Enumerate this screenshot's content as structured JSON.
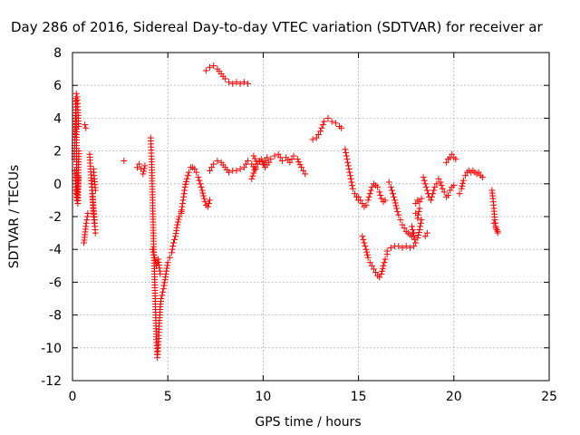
{
  "chart_data": {
    "type": "scatter",
    "title": "Day 286 of 2016, Sidereal Day-to-day VTEC variation (SDTVAR) for receiver ar",
    "xlabel": "GPS time / hours",
    "ylabel": "SDTVAR / TECUs",
    "xlim": [
      0,
      25
    ],
    "ylim": [
      -12,
      8
    ],
    "xticks": [
      0,
      5,
      10,
      15,
      20,
      25
    ],
    "yticks": [
      -12,
      -10,
      -8,
      -6,
      -4,
      -2,
      0,
      2,
      4,
      6,
      8
    ],
    "grid": true,
    "marker": "plus",
    "color": "#ff0000",
    "series": [
      {
        "name": "SDTVAR",
        "segments": [
          {
            "x": [
              0.1,
              0.12,
              0.15,
              0.18,
              0.2,
              0.22,
              0.25,
              0.28,
              0.3,
              0.33
            ],
            "y": [
              1.5,
              2.5,
              3.8,
              5.2,
              4.0,
              1.0,
              -0.5,
              -1.2,
              0.5,
              2.0
            ]
          },
          {
            "x": [
              0.12,
              0.16,
              0.2,
              0.24,
              0.28,
              0.32
            ],
            "y": [
              0.8,
              0.2,
              -0.6,
              -1.0,
              -0.3,
              0.4
            ]
          },
          {
            "x": [
              0.2,
              0.24,
              0.28,
              0.32
            ],
            "y": [
              5.5,
              5.3,
              4.5,
              3.5
            ]
          },
          {
            "x": [
              0.65,
              0.7
            ],
            "y": [
              3.6,
              3.4
            ]
          },
          {
            "x": [
              0.6,
              0.7,
              0.8
            ],
            "y": [
              -3.6,
              -2.6,
              -1.8
            ]
          },
          {
            "x": [
              0.9,
              0.95,
              1.0,
              1.05,
              1.1,
              1.15,
              1.2
            ],
            "y": [
              1.8,
              0.9,
              0.0,
              -0.8,
              -1.5,
              -2.2,
              -3.0
            ]
          },
          {
            "x": [
              1.0,
              1.05,
              1.1,
              1.15
            ],
            "y": [
              0.2,
              -0.6,
              -1.8,
              -2.4
            ]
          },
          {
            "x": [
              1.1,
              1.15,
              1.2
            ],
            "y": [
              0.9,
              0.3,
              -0.4
            ]
          },
          {
            "x": [
              2.7
            ],
            "y": [
              1.4
            ]
          },
          {
            "x": [
              3.4,
              3.5,
              3.6,
              3.7,
              3.8
            ],
            "y": [
              1.0,
              1.2,
              0.9,
              0.6,
              1.1
            ]
          },
          {
            "x": [
              4.1,
              4.15,
              4.2,
              4.25,
              4.3,
              4.35,
              4.4,
              4.45,
              4.5,
              4.55,
              4.6,
              4.65,
              4.7,
              4.8,
              4.9,
              5.0,
              5.1,
              5.2,
              5.3,
              5.4,
              5.5,
              5.6,
              5.7
            ],
            "y": [
              2.8,
              1.5,
              -1.0,
              -3.5,
              -5.5,
              -7.5,
              -9.5,
              -10.6,
              -9.8,
              -8.5,
              -7.5,
              -7.0,
              -6.8,
              -6.2,
              -5.5,
              -4.8,
              -4.5,
              -4.2,
              -3.6,
              -3.2,
              -2.5,
              -2.0,
              -1.7
            ]
          },
          {
            "x": [
              4.2,
              4.3,
              4.4,
              4.5,
              4.6
            ],
            "y": [
              -4.0,
              -4.5,
              -5.0,
              -4.6,
              -5.5
            ]
          },
          {
            "x": [
              5.7,
              5.8,
              5.9,
              6.0,
              6.1,
              6.2,
              6.3,
              6.4,
              6.5,
              6.6,
              6.7,
              6.8,
              6.9,
              7.0,
              7.1,
              7.2
            ],
            "y": [
              -1.8,
              -1.0,
              -0.2,
              0.3,
              0.7,
              1.0,
              1.0,
              0.9,
              0.7,
              0.4,
              0.0,
              -0.4,
              -0.9,
              -1.3,
              -1.4,
              -1.0
            ]
          },
          {
            "x": [
              7.0,
              7.2,
              7.4,
              7.6,
              7.8,
              8.0,
              8.2,
              8.4,
              8.6,
              8.8,
              9.0,
              9.2
            ],
            "y": [
              6.9,
              7.1,
              7.2,
              7.0,
              6.7,
              6.4,
              6.2,
              6.1,
              6.2,
              6.1,
              6.2,
              6.1
            ]
          },
          {
            "x": [
              7.2,
              7.4,
              7.6,
              7.8,
              8.0,
              8.2,
              8.4,
              8.6,
              8.8,
              9.0,
              9.2,
              9.4,
              9.6
            ],
            "y": [
              0.8,
              1.2,
              1.4,
              1.3,
              1.0,
              0.7,
              0.8,
              0.8,
              0.9,
              1.0,
              1.4,
              1.2,
              0.9
            ]
          },
          {
            "x": [
              9.4,
              9.6,
              9.8,
              10.0,
              10.2,
              10.4,
              10.6,
              10.8,
              11.0,
              11.2,
              11.4,
              11.6,
              11.8,
              12.0,
              12.2
            ],
            "y": [
              0.3,
              1.0,
              1.4,
              1.2,
              1.6,
              1.5,
              1.7,
              1.8,
              1.4,
              1.6,
              1.3,
              1.7,
              1.5,
              1.0,
              0.6
            ]
          },
          {
            "x": [
              9.5,
              9.7,
              9.9,
              10.1,
              10.3
            ],
            "y": [
              1.7,
              1.2,
              1.5,
              1.0,
              1.3
            ]
          },
          {
            "x": [
              12.6,
              12.8,
              13.0,
              13.2,
              13.4,
              13.6,
              13.8,
              14.0,
              14.1
            ],
            "y": [
              2.7,
              2.8,
              3.2,
              3.8,
              4.0,
              3.8,
              3.7,
              3.5,
              3.4
            ]
          },
          {
            "x": [
              14.3,
              14.4,
              14.5,
              14.6,
              14.7,
              14.8,
              14.9,
              15.0
            ],
            "y": [
              2.1,
              1.5,
              0.9,
              0.3,
              -0.3,
              -0.6,
              -0.8,
              -1.0
            ]
          },
          {
            "x": [
              15.0,
              15.1,
              15.2,
              15.3,
              15.4,
              15.5,
              15.6,
              15.7,
              15.8,
              15.9,
              16.0,
              16.1,
              16.2,
              16.3,
              16.4
            ],
            "y": [
              -0.8,
              -1.0,
              -1.2,
              -1.4,
              -1.3,
              -1.0,
              -0.6,
              -0.2,
              0.0,
              -0.1,
              -0.2,
              -0.5,
              -0.9,
              -1.1,
              -1.0
            ]
          },
          {
            "x": [
              15.2,
              15.3,
              15.4,
              15.5,
              15.6,
              15.7,
              15.8,
              15.9,
              16.0,
              16.1,
              16.2,
              16.3,
              16.4,
              16.5
            ],
            "y": [
              -3.2,
              -3.6,
              -4.0,
              -4.5,
              -4.8,
              -5.0,
              -5.2,
              -5.4,
              -5.6,
              -5.7,
              -5.5,
              -5.0,
              -4.6,
              -4.3
            ]
          },
          {
            "x": [
              16.5,
              16.7,
              16.9,
              17.1,
              17.3,
              17.5,
              17.7,
              17.9
            ],
            "y": [
              -4.1,
              -3.9,
              -3.8,
              -3.8,
              -3.9,
              -3.8,
              -3.9,
              -3.8
            ]
          },
          {
            "x": [
              16.6,
              16.7,
              16.8,
              16.9,
              17.0,
              17.1,
              17.2,
              17.3,
              17.4,
              17.5,
              17.6,
              17.7,
              17.8,
              17.9
            ],
            "y": [
              0.1,
              -0.2,
              -0.6,
              -1.0,
              -1.5,
              -1.9,
              -2.2,
              -2.5,
              -2.7,
              -2.9,
              -3.0,
              -3.1,
              -3.2,
              -3.0
            ]
          },
          {
            "x": [
              17.8,
              17.9,
              18.0,
              18.1,
              18.2,
              18.3
            ],
            "y": [
              -2.6,
              -3.2,
              -3.6,
              -3.3,
              -2.8,
              -2.2
            ]
          },
          {
            "x": [
              18.0,
              18.1,
              18.2,
              18.3
            ],
            "y": [
              -1.2,
              -1.0,
              -1.1,
              -0.9
            ]
          },
          {
            "x": [
              18.0,
              18.1,
              18.2
            ],
            "y": [
              -1.8,
              -2.1,
              -1.5
            ]
          },
          {
            "x": [
              18.5,
              18.6
            ],
            "y": [
              -3.2,
              -3.0
            ]
          },
          {
            "x": [
              18.4,
              18.5,
              18.6,
              18.7,
              18.8,
              18.9,
              19.0,
              19.1,
              19.2,
              19.3,
              19.4,
              19.5,
              19.6,
              19.7,
              19.8,
              19.9,
              20.0
            ],
            "y": [
              0.4,
              0.0,
              -0.4,
              -0.8,
              -1.0,
              -0.6,
              -0.2,
              0.0,
              0.3,
              0.1,
              -0.3,
              -0.5,
              -0.8,
              -0.7,
              -0.4,
              -0.2,
              -0.1
            ]
          },
          {
            "x": [
              19.6,
              19.7,
              19.8,
              19.9,
              20.0,
              20.1
            ],
            "y": [
              1.3,
              1.5,
              1.6,
              1.8,
              1.6,
              1.5
            ]
          },
          {
            "x": [
              20.3,
              20.4,
              20.5,
              20.6,
              20.7,
              20.8,
              20.9,
              21.0,
              21.1,
              21.2,
              21.3,
              21.4,
              21.5
            ],
            "y": [
              -0.6,
              -0.3,
              0.2,
              0.5,
              0.7,
              0.8,
              0.7,
              0.8,
              0.7,
              0.6,
              0.7,
              0.5,
              0.4
            ]
          },
          {
            "x": [
              22.0,
              22.05,
              22.1,
              22.15,
              22.2,
              22.25,
              22.3
            ],
            "y": [
              -0.4,
              -0.9,
              -1.5,
              -2.2,
              -2.6,
              -2.8,
              -3.0
            ]
          },
          {
            "x": [
              22.1,
              22.2,
              22.3
            ],
            "y": [
              -2.4,
              -2.7,
              -2.9
            ]
          }
        ]
      }
    ]
  }
}
